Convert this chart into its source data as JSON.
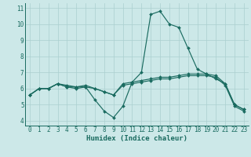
{
  "xlabel": "Humidex (Indice chaleur)",
  "bg_color": "#cce8e8",
  "grid_color": "#aacfcf",
  "line_color": "#1a6b60",
  "xlim": [
    -0.5,
    23.5
  ],
  "ylim": [
    3.7,
    11.3
  ],
  "yticks": [
    4,
    5,
    6,
    7,
    8,
    9,
    10,
    11
  ],
  "xticks": [
    0,
    1,
    2,
    3,
    4,
    5,
    6,
    7,
    8,
    9,
    10,
    11,
    12,
    13,
    14,
    15,
    16,
    17,
    18,
    19,
    20,
    21,
    22,
    23
  ],
  "series": [
    [
      5.6,
      6.0,
      6.0,
      6.3,
      6.1,
      6.0,
      6.1,
      5.3,
      4.6,
      4.2,
      4.9,
      6.4,
      7.0,
      10.6,
      10.8,
      10.0,
      9.8,
      8.5,
      7.2,
      6.9,
      6.6,
      6.3,
      5.0,
      4.7
    ],
    [
      5.6,
      6.0,
      6.0,
      6.3,
      6.2,
      6.1,
      6.2,
      6.0,
      5.8,
      5.6,
      6.3,
      6.4,
      6.5,
      6.6,
      6.7,
      6.7,
      6.8,
      6.9,
      6.9,
      6.9,
      6.8,
      6.3,
      5.0,
      4.7
    ],
    [
      5.6,
      6.0,
      6.0,
      6.3,
      6.1,
      6.1,
      6.1,
      6.0,
      5.8,
      5.6,
      6.2,
      6.3,
      6.4,
      6.5,
      6.6,
      6.6,
      6.7,
      6.8,
      6.8,
      6.8,
      6.7,
      6.2,
      4.9,
      4.6
    ]
  ],
  "tick_fontsize": 5.5,
  "xlabel_fontsize": 6.5,
  "marker_size": 2.0,
  "linewidth": 0.85
}
